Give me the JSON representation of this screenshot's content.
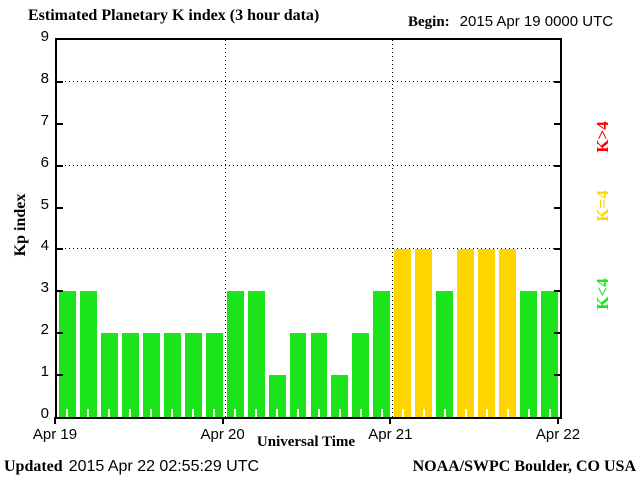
{
  "title": "Estimated Planetary K index (3 hour data)",
  "begin": {
    "label": "Begin:",
    "value": "2015 Apr 19 0000 UTC"
  },
  "legend": [
    {
      "label": "K>4",
      "color": "#ff0000"
    },
    {
      "label": "K=4",
      "color": "#ffd500"
    },
    {
      "label": "K<4",
      "color": "#1be41b"
    }
  ],
  "footer": {
    "updated_label": "Updated",
    "updated_value": "2015 Apr 22 02:55:29 UTC",
    "source": "NOAA/SWPC Boulder, CO USA"
  },
  "chart_data": {
    "type": "bar",
    "title": "Estimated Planetary K index (3 hour data)",
    "xlabel": "Universal Time",
    "ylabel": "Kp index",
    "ylim": [
      0,
      9
    ],
    "yticks": [
      0,
      1,
      2,
      3,
      4,
      5,
      6,
      7,
      8,
      9
    ],
    "gridlines_y": [
      4,
      6,
      8
    ],
    "grid": "dotted",
    "legend_position": "right",
    "bin_hours": 3,
    "x_day_labels": [
      "Apr 19",
      "Apr 20",
      "Apr 21",
      "Apr 22"
    ],
    "x_day_boundaries_values": [
      0,
      8,
      16,
      24
    ],
    "values": [
      3,
      3,
      2,
      2,
      2,
      2,
      2,
      2,
      3,
      3,
      1,
      2,
      2,
      1,
      2,
      3,
      4,
      4,
      3,
      4,
      4,
      4,
      3,
      3
    ],
    "color_rules": {
      "k_lt_4": "#1be41b",
      "k_eq_4": "#ffd500",
      "k_gt_4": "#ff0000"
    }
  }
}
